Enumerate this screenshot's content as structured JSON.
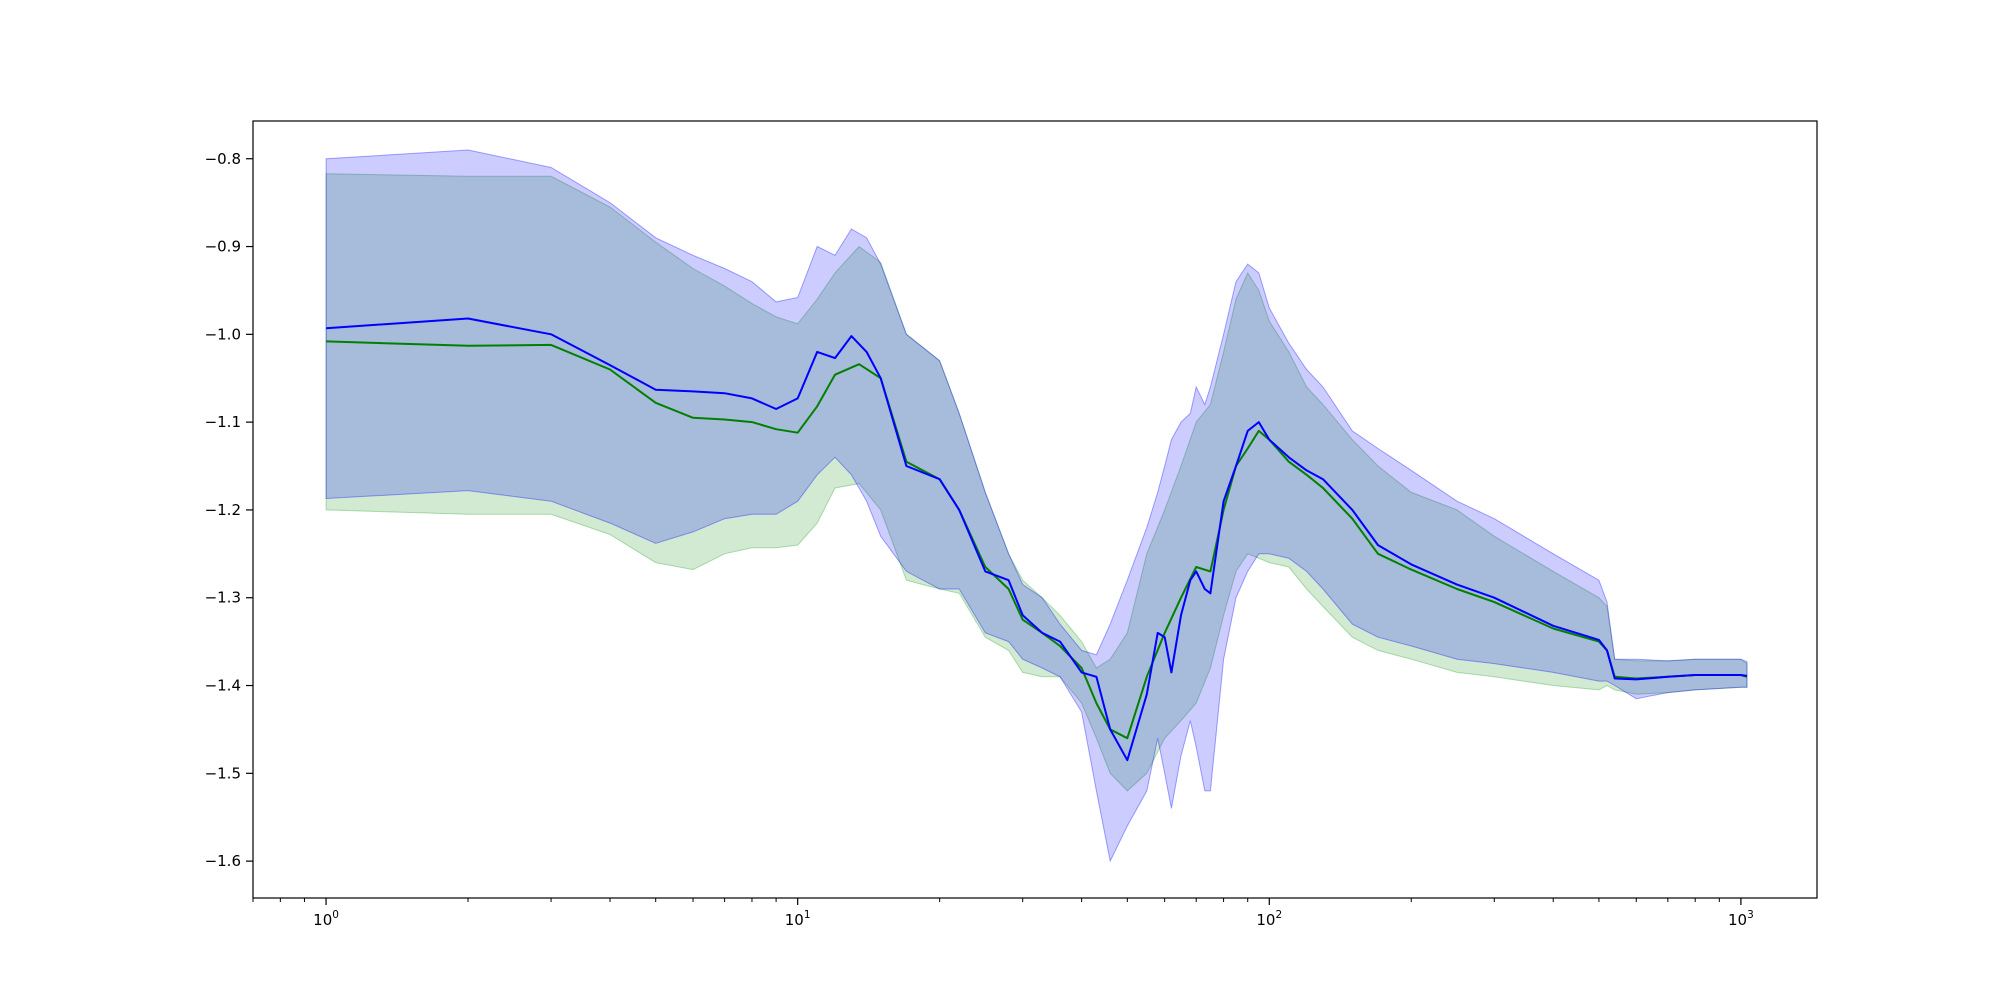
{
  "chart_data": {
    "type": "line",
    "title": "",
    "xlabel": "",
    "ylabel": "",
    "xscale": "log",
    "xlim": [
      0.7,
      1450
    ],
    "ylim": [
      -1.642,
      -0.757
    ],
    "grid": false,
    "legend": "none",
    "x_ticks": [
      {
        "value": 1,
        "base": "10",
        "exp": "0"
      },
      {
        "value": 10,
        "base": "10",
        "exp": "1"
      },
      {
        "value": 100,
        "base": "10",
        "exp": "2"
      },
      {
        "value": 1000,
        "base": "10",
        "exp": "3"
      }
    ],
    "y_ticks": [
      {
        "value": -0.8,
        "label": "−0.8"
      },
      {
        "value": -0.9,
        "label": "−0.9"
      },
      {
        "value": -1.0,
        "label": "−1.0"
      },
      {
        "value": -1.1,
        "label": "−1.1"
      },
      {
        "value": -1.2,
        "label": "−1.2"
      },
      {
        "value": -1.3,
        "label": "−1.3"
      },
      {
        "value": -1.4,
        "label": "−1.4"
      },
      {
        "value": -1.5,
        "label": "−1.5"
      },
      {
        "value": -1.6,
        "label": "−1.6"
      }
    ],
    "series": [
      {
        "color": "#008000",
        "band_color": "#2ca02c",
        "band_opacity": 0.22,
        "x": [
          1,
          2,
          3,
          4,
          5,
          6,
          7,
          8,
          9,
          10,
          11,
          12,
          13.5,
          15,
          17,
          20,
          22,
          25,
          28,
          30,
          33,
          36,
          40,
          43,
          46,
          50,
          55,
          60,
          65,
          70,
          75,
          80,
          85,
          90,
          95,
          100,
          110,
          120,
          130,
          150,
          170,
          200,
          250,
          300,
          400,
          500,
          520,
          540,
          600,
          700,
          800,
          1000,
          1030
        ],
        "mean": [
          -1.008,
          -1.013,
          -1.012,
          -1.04,
          -1.078,
          -1.095,
          -1.097,
          -1.1,
          -1.108,
          -1.112,
          -1.082,
          -1.046,
          -1.034,
          -1.05,
          -1.145,
          -1.165,
          -1.2,
          -1.265,
          -1.29,
          -1.325,
          -1.34,
          -1.355,
          -1.38,
          -1.42,
          -1.45,
          -1.46,
          -1.39,
          -1.34,
          -1.3,
          -1.265,
          -1.27,
          -1.2,
          -1.15,
          -1.13,
          -1.11,
          -1.12,
          -1.145,
          -1.16,
          -1.175,
          -1.21,
          -1.25,
          -1.268,
          -1.29,
          -1.305,
          -1.335,
          -1.35,
          -1.36,
          -1.39,
          -1.392,
          -1.39,
          -1.388,
          -1.388,
          -1.39
        ],
        "lower": [
          -1.2,
          -1.205,
          -1.205,
          -1.228,
          -1.26,
          -1.268,
          -1.25,
          -1.243,
          -1.243,
          -1.24,
          -1.215,
          -1.175,
          -1.17,
          -1.2,
          -1.28,
          -1.29,
          -1.295,
          -1.345,
          -1.36,
          -1.385,
          -1.39,
          -1.39,
          -1.42,
          -1.46,
          -1.5,
          -1.52,
          -1.5,
          -1.46,
          -1.44,
          -1.42,
          -1.38,
          -1.32,
          -1.27,
          -1.25,
          -1.255,
          -1.26,
          -1.265,
          -1.29,
          -1.31,
          -1.345,
          -1.36,
          -1.37,
          -1.385,
          -1.39,
          -1.4,
          -1.405,
          -1.4,
          -1.405,
          -1.41,
          -1.408,
          -1.405,
          -1.402,
          -1.402
        ],
        "upper": [
          -0.817,
          -0.82,
          -0.82,
          -0.855,
          -0.895,
          -0.925,
          -0.945,
          -0.965,
          -0.98,
          -0.988,
          -0.96,
          -0.93,
          -0.9,
          -0.918,
          -1.0,
          -1.03,
          -1.09,
          -1.18,
          -1.25,
          -1.28,
          -1.3,
          -1.32,
          -1.35,
          -1.38,
          -1.37,
          -1.34,
          -1.25,
          -1.2,
          -1.15,
          -1.1,
          -1.08,
          -1.02,
          -0.96,
          -0.93,
          -0.95,
          -0.985,
          -1.02,
          -1.06,
          -1.08,
          -1.12,
          -1.15,
          -1.18,
          -1.2,
          -1.23,
          -1.27,
          -1.3,
          -1.31,
          -1.37,
          -1.372,
          -1.372,
          -1.37,
          -1.37,
          -1.375
        ]
      },
      {
        "color": "#0000ff",
        "band_color": "#0000ff",
        "band_opacity": 0.2,
        "x": [
          1,
          2,
          3,
          4,
          5,
          6,
          7,
          8,
          9,
          10,
          11,
          12,
          13,
          14,
          15,
          17,
          20,
          22,
          25,
          28,
          30,
          33,
          36,
          40,
          43,
          46,
          50,
          55,
          58,
          60,
          62,
          65,
          68,
          70,
          73,
          75,
          80,
          85,
          90,
          95,
          100,
          110,
          120,
          130,
          150,
          170,
          200,
          250,
          300,
          400,
          500,
          520,
          540,
          600,
          700,
          800,
          1000,
          1030
        ],
        "mean": [
          -0.993,
          -0.982,
          -1.0,
          -1.035,
          -1.063,
          -1.065,
          -1.067,
          -1.073,
          -1.085,
          -1.073,
          -1.02,
          -1.027,
          -1.002,
          -1.02,
          -1.05,
          -1.15,
          -1.165,
          -1.2,
          -1.27,
          -1.28,
          -1.32,
          -1.34,
          -1.35,
          -1.385,
          -1.39,
          -1.45,
          -1.485,
          -1.41,
          -1.34,
          -1.345,
          -1.385,
          -1.32,
          -1.28,
          -1.27,
          -1.29,
          -1.295,
          -1.19,
          -1.15,
          -1.11,
          -1.1,
          -1.12,
          -1.14,
          -1.155,
          -1.165,
          -1.2,
          -1.24,
          -1.262,
          -1.285,
          -1.3,
          -1.332,
          -1.348,
          -1.36,
          -1.392,
          -1.393,
          -1.39,
          -1.388,
          -1.388,
          -1.389
        ],
        "lower": [
          -1.187,
          -1.178,
          -1.19,
          -1.215,
          -1.238,
          -1.225,
          -1.21,
          -1.205,
          -1.205,
          -1.19,
          -1.16,
          -1.14,
          -1.16,
          -1.19,
          -1.23,
          -1.27,
          -1.29,
          -1.29,
          -1.34,
          -1.35,
          -1.37,
          -1.38,
          -1.39,
          -1.43,
          -1.52,
          -1.6,
          -1.56,
          -1.52,
          -1.46,
          -1.5,
          -1.54,
          -1.48,
          -1.44,
          -1.47,
          -1.52,
          -1.52,
          -1.37,
          -1.3,
          -1.27,
          -1.25,
          -1.25,
          -1.255,
          -1.27,
          -1.29,
          -1.33,
          -1.345,
          -1.355,
          -1.37,
          -1.375,
          -1.385,
          -1.395,
          -1.395,
          -1.4,
          -1.415,
          -1.408,
          -1.405,
          -1.402,
          -1.402
        ],
        "upper": [
          -0.8,
          -0.79,
          -0.81,
          -0.85,
          -0.89,
          -0.91,
          -0.925,
          -0.94,
          -0.963,
          -0.958,
          -0.9,
          -0.91,
          -0.88,
          -0.89,
          -0.92,
          -1.0,
          -1.03,
          -1.09,
          -1.18,
          -1.25,
          -1.285,
          -1.3,
          -1.33,
          -1.36,
          -1.365,
          -1.33,
          -1.28,
          -1.22,
          -1.18,
          -1.15,
          -1.12,
          -1.1,
          -1.09,
          -1.06,
          -1.08,
          -1.06,
          -1.0,
          -0.94,
          -0.92,
          -0.93,
          -0.97,
          -1.01,
          -1.04,
          -1.06,
          -1.11,
          -1.13,
          -1.155,
          -1.19,
          -1.21,
          -1.25,
          -1.28,
          -1.305,
          -1.37,
          -1.37,
          -1.372,
          -1.37,
          -1.37,
          -1.373
        ]
      }
    ]
  }
}
